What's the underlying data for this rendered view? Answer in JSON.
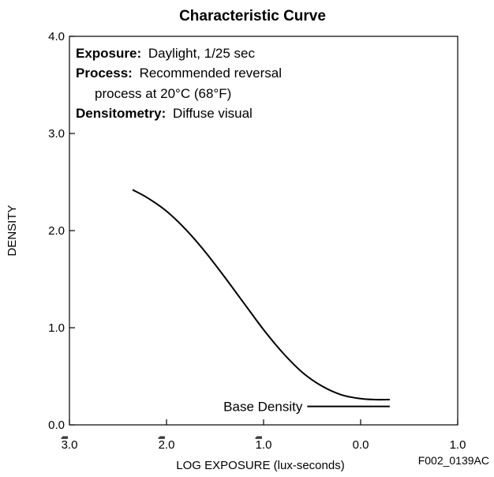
{
  "chart_data": {
    "type": "line",
    "title": "Characteristic Curve",
    "xlabel": "LOG EXPOSURE (lux-seconds)",
    "ylabel": "DENSITY",
    "figure_id": "F002_0139AC",
    "xlim": [
      -3.0,
      1.0
    ],
    "ylim": [
      0.0,
      4.0
    ],
    "x_ticks": [
      {
        "value": -3.0,
        "bar_digit": "3",
        "rest": ".0"
      },
      {
        "value": -2.0,
        "bar_digit": "2",
        "rest": ".0"
      },
      {
        "value": -1.0,
        "bar_digit": "1",
        "rest": ".0"
      },
      {
        "value": 0.0,
        "bar_digit": "",
        "rest": "0.0"
      },
      {
        "value": 1.0,
        "bar_digit": "",
        "rest": "1.0"
      }
    ],
    "y_ticks": [
      {
        "value": 0.0,
        "label": "0.0"
      },
      {
        "value": 1.0,
        "label": "1.0"
      },
      {
        "value": 2.0,
        "label": "2.0"
      },
      {
        "value": 3.0,
        "label": "3.0"
      },
      {
        "value": 4.0,
        "label": "4.0"
      }
    ],
    "grid": false,
    "notes": [
      {
        "bold": "Exposure:",
        "text": "Daylight, 1/25 sec"
      },
      {
        "bold": "Process:",
        "text": "Recommended reversal"
      },
      {
        "bold": "",
        "text": "process at 20°C (68°F)"
      },
      {
        "bold": "Densitometry:",
        "text": "Diffuse visual"
      }
    ],
    "annotation": "Base Density",
    "series": [
      {
        "x": [
          -2.35,
          -2.2,
          -2.0,
          -1.8,
          -1.6,
          -1.4,
          -1.2,
          -1.0,
          -0.8,
          -0.6,
          -0.4,
          -0.2,
          0.0,
          0.15,
          0.3
        ],
        "y": [
          2.42,
          2.34,
          2.2,
          2.01,
          1.78,
          1.52,
          1.25,
          0.98,
          0.74,
          0.54,
          0.4,
          0.31,
          0.27,
          0.26,
          0.26
        ]
      }
    ],
    "base_density": {
      "x": [
        -0.55,
        0.3
      ],
      "y": 0.19
    }
  }
}
